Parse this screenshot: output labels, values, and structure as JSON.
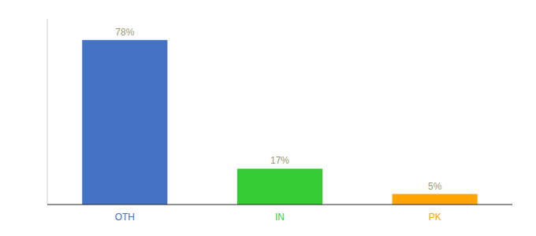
{
  "chart_data": {
    "type": "bar",
    "categories": [
      "OTH",
      "IN",
      "PK"
    ],
    "values": [
      78,
      17,
      5
    ],
    "value_labels": [
      "78%",
      "17%",
      "5%"
    ],
    "colors": [
      "#4472C4",
      "#33CC33",
      "#FFA500"
    ],
    "ylim": [
      0,
      88
    ],
    "data_labels": true,
    "tick_labels": "x",
    "grid": false
  }
}
